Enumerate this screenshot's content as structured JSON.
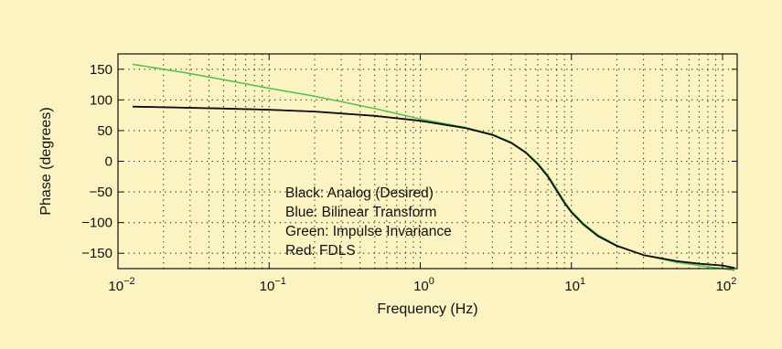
{
  "chart_data": {
    "type": "line",
    "title": "",
    "xlabel": "Frequency (Hz)",
    "ylabel": "Phase (degrees)",
    "xscale": "log",
    "xlim": [
      0.01,
      125
    ],
    "ylim": [
      -175,
      175
    ],
    "grid": true,
    "x_ticks": [
      {
        "value": 0.01,
        "base": "10",
        "exp": "−2"
      },
      {
        "value": 0.1,
        "base": "10",
        "exp": "−1"
      },
      {
        "value": 1,
        "base": "10",
        "exp": "0"
      },
      {
        "value": 10,
        "base": "10",
        "exp": "1"
      },
      {
        "value": 100,
        "base": "10",
        "exp": "2"
      }
    ],
    "y_ticks": [
      "150",
      "100",
      "50",
      "0",
      "−50",
      "−100",
      "−150"
    ],
    "y_tick_values": [
      150,
      100,
      50,
      0,
      -50,
      -100,
      -150
    ],
    "legend_lines": [
      "Black: Analog (Desired)",
      "Blue: Bilinear Transform",
      "Green: Impulse Invariance",
      "Red: FDLS"
    ],
    "legend_position": "lower-middle",
    "series": [
      {
        "color": "#111111",
        "x": [
          0.0125,
          0.02,
          0.05,
          0.1,
          0.2,
          0.5,
          1,
          2,
          3,
          4,
          5,
          6,
          7,
          8,
          9,
          10,
          12,
          15,
          20,
          30,
          50,
          70,
          100,
          120
        ],
        "y": [
          89,
          88,
          86,
          84,
          81,
          74,
          66,
          54,
          43,
          30,
          14,
          -5,
          -25,
          -48,
          -68,
          -83,
          -103,
          -122,
          -138,
          -153,
          -163,
          -167,
          -170,
          -174
        ]
      },
      {
        "color": "#2a56c6",
        "x": [
          0.0125,
          0.02,
          0.05,
          0.1,
          0.2,
          0.5,
          1,
          2,
          3,
          4,
          5,
          6,
          7,
          8,
          9,
          10,
          12,
          15,
          20,
          30,
          50,
          70,
          100,
          120
        ],
        "y": [
          89,
          88,
          86,
          84,
          81,
          74,
          66,
          54,
          43,
          30,
          14,
          -5,
          -25,
          -48,
          -68,
          -83,
          -103,
          -122,
          -138,
          -153,
          -163,
          -167,
          -170,
          -174
        ]
      },
      {
        "color": "#4cc24c",
        "x": [
          0.0125,
          0.02,
          0.03,
          0.05,
          0.1,
          0.2,
          0.5,
          1,
          2,
          3,
          4,
          5,
          6,
          7,
          8,
          9,
          10,
          12,
          15,
          20,
          30,
          50,
          70,
          100,
          120
        ],
        "y": [
          158,
          150,
          143,
          133,
          119,
          106,
          86,
          69,
          55,
          44,
          31,
          15,
          -3,
          -23,
          -45,
          -66,
          -81,
          -101,
          -120,
          -137,
          -153,
          -165,
          -170,
          -175,
          -178
        ]
      },
      {
        "color": "#c83c3c",
        "x": [
          0.0125,
          0.02,
          0.05,
          0.1,
          0.2,
          0.5,
          1,
          2,
          3,
          4,
          5,
          6,
          7,
          8,
          9,
          10,
          12,
          15,
          20,
          30,
          50,
          70,
          100,
          120
        ],
        "y": [
          89,
          88,
          86,
          84,
          81,
          74,
          66,
          54,
          43,
          30,
          14,
          -5,
          -25,
          -48,
          -68,
          -83,
          -103,
          -122,
          -138,
          -153,
          -163,
          -167,
          -170,
          -174
        ]
      }
    ],
    "colors": {
      "background": "#fbf3c2",
      "plot_background": "#fbf3c2",
      "axes": "#111111"
    }
  }
}
